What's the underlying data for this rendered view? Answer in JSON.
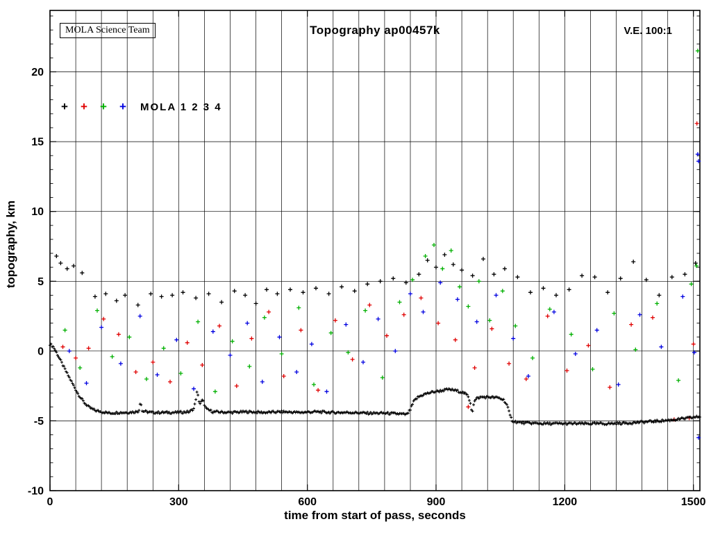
{
  "chart": {
    "title": "Topography ap00457k",
    "ve_label": "V.E. 100:1",
    "team_label": "MOLA Science Team",
    "legend_label": "MOLA 1 2 3 4"
  },
  "chart_data": {
    "type": "scatter",
    "title": "Topography ap00457k",
    "xlabel": "time from start of pass, seconds",
    "ylabel": "topography, km",
    "xlim": [
      0,
      1515
    ],
    "ylim": [
      -10,
      24.4
    ],
    "xticks": [
      0,
      300,
      600,
      900,
      1200,
      1500
    ],
    "yticks": [
      -10,
      -5,
      0,
      5,
      10,
      15,
      20
    ],
    "x_grid_step": 60,
    "grid": true,
    "marker": "plus",
    "legend": [
      "MOLA 1",
      "MOLA 2",
      "MOLA 3",
      "MOLA 4"
    ],
    "colors": [
      "#000000",
      "#e00000",
      "#00b000",
      "#0000e0"
    ],
    "profile_series": "dense ground track (MOLA 1, black)",
    "profile": [
      [
        0,
        0.5
      ],
      [
        8,
        0.3
      ],
      [
        15,
        -0.1
      ],
      [
        25,
        -0.7
      ],
      [
        38,
        -1.5
      ],
      [
        52,
        -2.3
      ],
      [
        66,
        -3.1
      ],
      [
        80,
        -3.7
      ],
      [
        92,
        -4.05
      ],
      [
        105,
        -4.25
      ],
      [
        120,
        -4.35
      ],
      [
        140,
        -4.45
      ],
      [
        160,
        -4.4
      ],
      [
        180,
        -4.4
      ],
      [
        200,
        -4.35
      ],
      [
        207,
        -4.3
      ],
      [
        211,
        -3.55
      ],
      [
        215,
        -4.3
      ],
      [
        235,
        -4.4
      ],
      [
        265,
        -4.4
      ],
      [
        295,
        -4.4
      ],
      [
        325,
        -4.35
      ],
      [
        336,
        -4.1
      ],
      [
        343,
        -2.9
      ],
      [
        349,
        -3.8
      ],
      [
        356,
        -3.5
      ],
      [
        364,
        -4.15
      ],
      [
        380,
        -4.35
      ],
      [
        420,
        -4.4
      ],
      [
        460,
        -4.35
      ],
      [
        500,
        -4.4
      ],
      [
        540,
        -4.35
      ],
      [
        580,
        -4.4
      ],
      [
        620,
        -4.35
      ],
      [
        660,
        -4.4
      ],
      [
        700,
        -4.4
      ],
      [
        740,
        -4.45
      ],
      [
        780,
        -4.45
      ],
      [
        815,
        -4.5
      ],
      [
        832,
        -4.55
      ],
      [
        840,
        -4.2
      ],
      [
        848,
        -3.6
      ],
      [
        858,
        -3.3
      ],
      [
        872,
        -3.1
      ],
      [
        890,
        -2.95
      ],
      [
        910,
        -2.85
      ],
      [
        928,
        -2.75
      ],
      [
        942,
        -2.8
      ],
      [
        955,
        -2.9
      ],
      [
        965,
        -3.0
      ],
      [
        974,
        -3.2
      ],
      [
        980,
        -3.7
      ],
      [
        984,
        -4.45
      ],
      [
        988,
        -3.7
      ],
      [
        994,
        -3.4
      ],
      [
        1005,
        -3.3
      ],
      [
        1025,
        -3.3
      ],
      [
        1045,
        -3.35
      ],
      [
        1058,
        -3.5
      ],
      [
        1066,
        -3.9
      ],
      [
        1072,
        -4.6
      ],
      [
        1078,
        -5.0
      ],
      [
        1090,
        -5.1
      ],
      [
        1110,
        -5.15
      ],
      [
        1150,
        -5.2
      ],
      [
        1200,
        -5.2
      ],
      [
        1250,
        -5.2
      ],
      [
        1300,
        -5.2
      ],
      [
        1350,
        -5.15
      ],
      [
        1400,
        -5.05
      ],
      [
        1445,
        -4.95
      ],
      [
        1475,
        -4.85
      ],
      [
        1500,
        -4.75
      ],
      [
        1515,
        -4.7
      ]
    ],
    "scatter": [
      [
        15,
        6.8,
        0
      ],
      [
        25,
        6.3,
        0
      ],
      [
        40,
        5.9,
        0
      ],
      [
        55,
        6.1,
        0
      ],
      [
        75,
        5.6,
        0
      ],
      [
        105,
        3.9,
        0
      ],
      [
        130,
        4.1,
        0
      ],
      [
        155,
        3.6,
        0
      ],
      [
        175,
        4.0,
        0
      ],
      [
        205,
        3.3,
        0
      ],
      [
        235,
        4.1,
        0
      ],
      [
        260,
        3.9,
        0
      ],
      [
        285,
        4.0,
        0
      ],
      [
        310,
        4.2,
        0
      ],
      [
        340,
        3.8,
        0
      ],
      [
        370,
        4.1,
        0
      ],
      [
        400,
        3.5,
        0
      ],
      [
        430,
        4.3,
        0
      ],
      [
        455,
        4.0,
        0
      ],
      [
        480,
        3.4,
        0
      ],
      [
        505,
        4.4,
        0
      ],
      [
        530,
        4.1,
        0
      ],
      [
        560,
        4.4,
        0
      ],
      [
        590,
        4.2,
        0
      ],
      [
        620,
        4.5,
        0
      ],
      [
        650,
        4.1,
        0
      ],
      [
        680,
        4.6,
        0
      ],
      [
        710,
        4.3,
        0
      ],
      [
        740,
        4.8,
        0
      ],
      [
        770,
        5.0,
        0
      ],
      [
        800,
        5.2,
        0
      ],
      [
        830,
        4.9,
        0
      ],
      [
        860,
        5.5,
        0
      ],
      [
        880,
        6.5,
        0
      ],
      [
        900,
        6.0,
        0
      ],
      [
        920,
        6.9,
        0
      ],
      [
        940,
        6.2,
        0
      ],
      [
        960,
        5.8,
        0
      ],
      [
        985,
        5.4,
        0
      ],
      [
        1010,
        6.6,
        0
      ],
      [
        1035,
        5.5,
        0
      ],
      [
        1060,
        5.9,
        0
      ],
      [
        1090,
        5.3,
        0
      ],
      [
        1120,
        4.2,
        0
      ],
      [
        1150,
        4.5,
        0
      ],
      [
        1180,
        4.0,
        0
      ],
      [
        1210,
        4.4,
        0
      ],
      [
        1240,
        5.4,
        0
      ],
      [
        1270,
        5.3,
        0
      ],
      [
        1300,
        4.2,
        0
      ],
      [
        1330,
        5.2,
        0
      ],
      [
        1360,
        6.4,
        0
      ],
      [
        1390,
        5.1,
        0
      ],
      [
        1420,
        4.0,
        0
      ],
      [
        1450,
        5.3,
        0
      ],
      [
        1480,
        5.5,
        0
      ],
      [
        1505,
        6.3,
        0
      ],
      [
        30,
        0.3,
        1
      ],
      [
        60,
        -0.5,
        1
      ],
      [
        90,
        0.2,
        1
      ],
      [
        125,
        2.3,
        1
      ],
      [
        160,
        1.2,
        1
      ],
      [
        200,
        -1.5,
        1
      ],
      [
        240,
        -0.8,
        1
      ],
      [
        280,
        -2.2,
        1
      ],
      [
        320,
        0.6,
        1
      ],
      [
        355,
        -1.0,
        1
      ],
      [
        395,
        1.8,
        1
      ],
      [
        435,
        -2.5,
        1
      ],
      [
        470,
        0.9,
        1
      ],
      [
        510,
        2.8,
        1
      ],
      [
        545,
        -1.8,
        1
      ],
      [
        585,
        1.5,
        1
      ],
      [
        625,
        -2.8,
        1
      ],
      [
        665,
        2.2,
        1
      ],
      [
        705,
        -0.6,
        1
      ],
      [
        745,
        3.3,
        1
      ],
      [
        785,
        1.1,
        1
      ],
      [
        825,
        2.6,
        1
      ],
      [
        865,
        3.8,
        1
      ],
      [
        905,
        2.0,
        1
      ],
      [
        945,
        0.8,
        1
      ],
      [
        975,
        -4.0,
        1
      ],
      [
        990,
        -1.2,
        1
      ],
      [
        1030,
        1.6,
        1
      ],
      [
        1070,
        -0.9,
        1
      ],
      [
        1110,
        -2.0,
        1
      ],
      [
        1160,
        2.5,
        1
      ],
      [
        1205,
        -1.4,
        1
      ],
      [
        1255,
        0.4,
        1
      ],
      [
        1305,
        -2.6,
        1
      ],
      [
        1355,
        1.9,
        1
      ],
      [
        1405,
        2.4,
        1
      ],
      [
        1455,
        -4.9,
        1
      ],
      [
        1490,
        -4.8,
        1
      ],
      [
        1500,
        0.5,
        1
      ],
      [
        1508,
        16.3,
        1
      ],
      [
        35,
        1.5,
        2
      ],
      [
        70,
        -1.2,
        2
      ],
      [
        110,
        2.9,
        2
      ],
      [
        145,
        -0.4,
        2
      ],
      [
        185,
        1.0,
        2
      ],
      [
        225,
        -2.0,
        2
      ],
      [
        265,
        0.2,
        2
      ],
      [
        305,
        -1.6,
        2
      ],
      [
        345,
        2.1,
        2
      ],
      [
        385,
        -2.9,
        2
      ],
      [
        425,
        0.7,
        2
      ],
      [
        465,
        -1.1,
        2
      ],
      [
        500,
        2.4,
        2
      ],
      [
        540,
        -0.2,
        2
      ],
      [
        580,
        3.1,
        2
      ],
      [
        615,
        -2.4,
        2
      ],
      [
        655,
        1.3,
        2
      ],
      [
        695,
        -0.1,
        2
      ],
      [
        735,
        2.9,
        2
      ],
      [
        775,
        -1.9,
        2
      ],
      [
        815,
        3.5,
        2
      ],
      [
        845,
        5.1,
        2
      ],
      [
        875,
        6.8,
        2
      ],
      [
        895,
        7.6,
        2
      ],
      [
        915,
        5.9,
        2
      ],
      [
        935,
        7.2,
        2
      ],
      [
        955,
        4.6,
        2
      ],
      [
        975,
        3.2,
        2
      ],
      [
        1000,
        5.0,
        2
      ],
      [
        1025,
        2.2,
        2
      ],
      [
        1055,
        4.3,
        2
      ],
      [
        1085,
        1.8,
        2
      ],
      [
        1125,
        -0.5,
        2
      ],
      [
        1165,
        3.0,
        2
      ],
      [
        1215,
        1.2,
        2
      ],
      [
        1265,
        -1.3,
        2
      ],
      [
        1315,
        2.7,
        2
      ],
      [
        1365,
        0.1,
        2
      ],
      [
        1415,
        3.4,
        2
      ],
      [
        1465,
        -2.1,
        2
      ],
      [
        1495,
        4.8,
        2
      ],
      [
        1510,
        21.5,
        2
      ],
      [
        1507,
        6.1,
        2
      ],
      [
        45,
        0.0,
        3
      ],
      [
        85,
        -2.3,
        3
      ],
      [
        120,
        1.7,
        3
      ],
      [
        165,
        -0.9,
        3
      ],
      [
        210,
        2.5,
        3
      ],
      [
        250,
        -1.7,
        3
      ],
      [
        295,
        0.8,
        3
      ],
      [
        335,
        -2.7,
        3
      ],
      [
        380,
        1.4,
        3
      ],
      [
        420,
        -0.3,
        3
      ],
      [
        460,
        2.0,
        3
      ],
      [
        495,
        -2.2,
        3
      ],
      [
        535,
        1.0,
        3
      ],
      [
        575,
        -1.5,
        3
      ],
      [
        610,
        0.5,
        3
      ],
      [
        645,
        -2.9,
        3
      ],
      [
        690,
        1.9,
        3
      ],
      [
        730,
        -0.8,
        3
      ],
      [
        765,
        2.3,
        3
      ],
      [
        805,
        0.0,
        3
      ],
      [
        840,
        4.1,
        3
      ],
      [
        870,
        2.8,
        3
      ],
      [
        910,
        4.9,
        3
      ],
      [
        950,
        3.7,
        3
      ],
      [
        995,
        2.1,
        3
      ],
      [
        1040,
        4.0,
        3
      ],
      [
        1080,
        0.9,
        3
      ],
      [
        1115,
        -1.8,
        3
      ],
      [
        1175,
        2.8,
        3
      ],
      [
        1225,
        -0.2,
        3
      ],
      [
        1275,
        1.5,
        3
      ],
      [
        1325,
        -2.4,
        3
      ],
      [
        1375,
        2.6,
        3
      ],
      [
        1425,
        0.3,
        3
      ],
      [
        1475,
        3.9,
        3
      ],
      [
        1502,
        -0.1,
        3
      ],
      [
        1510,
        14.1,
        3
      ],
      [
        1512,
        13.6,
        3
      ],
      [
        1512,
        -6.2,
        3
      ]
    ]
  }
}
